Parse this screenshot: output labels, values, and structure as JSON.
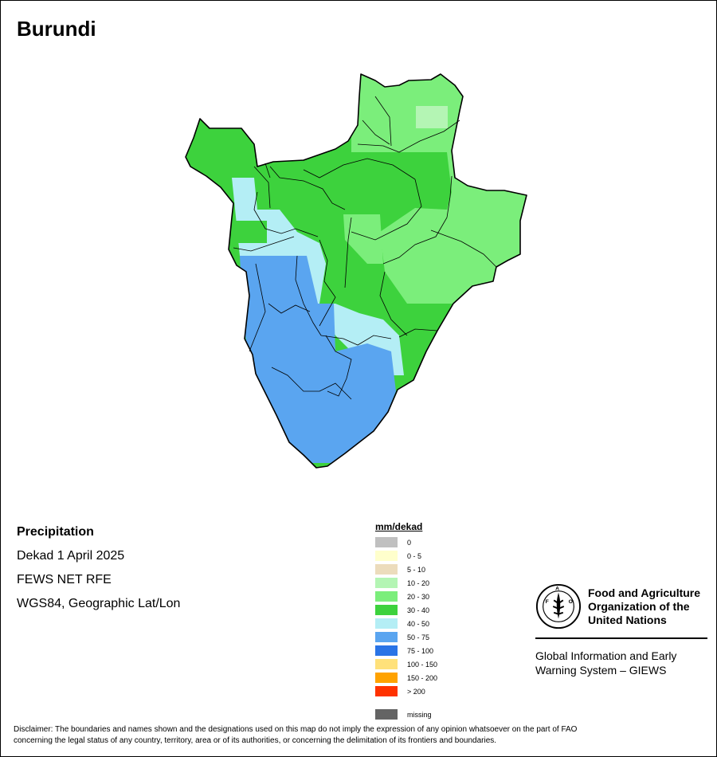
{
  "map": {
    "title": "Burundi",
    "info": {
      "variable": "Precipitation",
      "period": "Dekad 1 April 2025",
      "source": "FEWS NET RFE",
      "projection": "WGS84, Geographic Lat/Lon"
    },
    "legend": {
      "title": "mm/dekad",
      "classes": [
        {
          "label": "0",
          "color": "#c0c0c0"
        },
        {
          "label": "0 - 5",
          "color": "#ffffcc"
        },
        {
          "label": "5 - 10",
          "color": "#ecdcbc"
        },
        {
          "label": "10 - 20",
          "color": "#b4f5b4"
        },
        {
          "label": "20 - 30",
          "color": "#7bee7b"
        },
        {
          "label": "30 - 40",
          "color": "#3dd23d"
        },
        {
          "label": "40 - 50",
          "color": "#b4eef5"
        },
        {
          "label": "50 - 75",
          "color": "#5aa5f0"
        },
        {
          "label": "75 - 100",
          "color": "#2a74e6"
        },
        {
          "label": "100 - 150",
          "color": "#ffe17a"
        },
        {
          "label": "150 - 200",
          "color": "#ffa200"
        },
        {
          "label": "> 200",
          "color": "#ff3200"
        }
      ],
      "missing": {
        "label": "missing",
        "color": "#646464"
      }
    },
    "fao": {
      "name_line1": "Food and Agriculture",
      "name_line2": "Organization of the",
      "name_line3": "United Nations",
      "giews_line1": "Global Information and Early",
      "giews_line2": "Warning System – GIEWS",
      "logo_letters": "FAO",
      "motto": "FIAT PANIS"
    },
    "disclaimer_line1": "Disclaimer: The boundaries and names shown and the designations used on this map do not imply the expression of any opinion whatsoever on the part of FAO",
    "disclaimer_line2": "concerning the legal status of any country, territory, area or of its authorities, or concerning the delimitation of its frontiers and boundaries."
  }
}
